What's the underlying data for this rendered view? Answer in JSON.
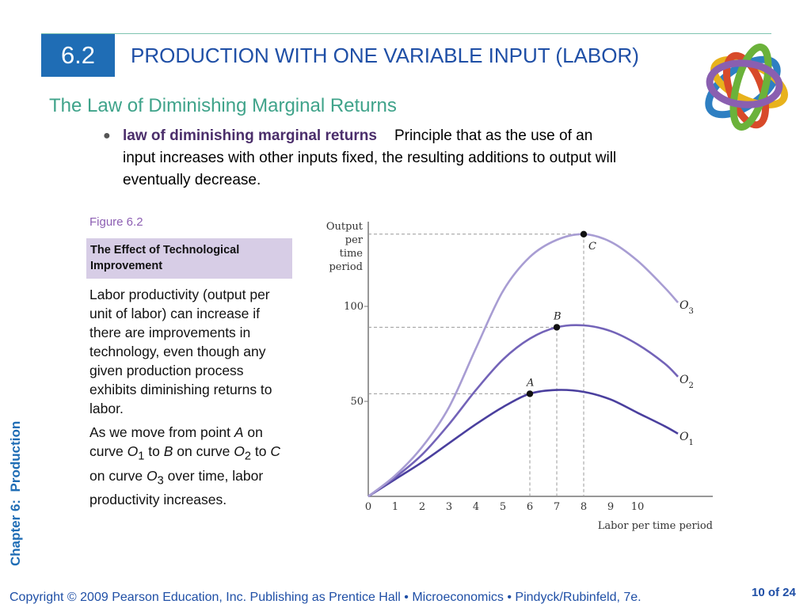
{
  "header": {
    "section_number": "6.2",
    "title": "PRODUCTION WITH ONE VARIABLE INPUT (LABOR)"
  },
  "subtitle": "The Law of Diminishing Marginal Returns",
  "bullet": {
    "term": "law of diminishing marginal returns",
    "definition": "Principle that as the use of an input increases with other inputs fixed, the resulting additions to output will eventually decrease."
  },
  "figure": {
    "label": "Figure 6.2",
    "title": "The Effect of Technological Improvement",
    "caption1": "Labor productivity (output per unit of labor) can increase if there are improvements in technology, even though any given production process exhibits diminishing returns to labor.",
    "caption2": {
      "t1": "As we move from point ",
      "pA": "A",
      "t2": " on curve ",
      "o1": "O",
      "s1": "1",
      "t3": " to ",
      "pB": "B",
      "t4": " on curve ",
      "o2": "O",
      "s2": "2",
      "t5": " to ",
      "pC": "C",
      "t6": " on curve ",
      "o3": "O",
      "s3": "3",
      "t7": " over time, labor productivity increases."
    }
  },
  "chart_data": {
    "type": "line",
    "ylabel": [
      "Output",
      "per",
      "time",
      "period"
    ],
    "xlabel": "Labor per time period",
    "xlim": [
      0,
      13
    ],
    "ylim": [
      0,
      150
    ],
    "x_ticks": [
      0,
      1,
      2,
      3,
      4,
      5,
      6,
      7,
      8,
      9,
      10
    ],
    "y_ticks": [
      50,
      100
    ],
    "series": [
      {
        "name": "O",
        "sub": "1",
        "color": "#4a3f9e",
        "points": [
          [
            0,
            0
          ],
          [
            1,
            9
          ],
          [
            2,
            18
          ],
          [
            3,
            28
          ],
          [
            4,
            38
          ],
          [
            5,
            47
          ],
          [
            6,
            54
          ],
          [
            7,
            56
          ],
          [
            8,
            55
          ],
          [
            9,
            51
          ],
          [
            10,
            44
          ],
          [
            11,
            37
          ],
          [
            11.5,
            33
          ]
        ]
      },
      {
        "name": "O",
        "sub": "2",
        "color": "#7363b8",
        "points": [
          [
            0,
            0
          ],
          [
            1,
            10
          ],
          [
            2,
            22
          ],
          [
            3,
            38
          ],
          [
            4,
            56
          ],
          [
            5,
            72
          ],
          [
            6,
            83
          ],
          [
            7,
            89
          ],
          [
            8,
            90
          ],
          [
            9,
            87
          ],
          [
            10,
            80
          ],
          [
            11,
            70
          ],
          [
            11.5,
            63
          ]
        ]
      },
      {
        "name": "O",
        "sub": "3",
        "color": "#a89dd3",
        "points": [
          [
            0,
            0
          ],
          [
            1,
            11
          ],
          [
            2,
            26
          ],
          [
            3,
            47
          ],
          [
            4,
            78
          ],
          [
            5,
            108
          ],
          [
            6,
            126
          ],
          [
            7,
            135
          ],
          [
            8,
            138
          ],
          [
            9,
            134
          ],
          [
            10,
            124
          ],
          [
            11,
            110
          ],
          [
            11.5,
            102
          ]
        ]
      }
    ],
    "points": [
      {
        "label": "A",
        "x": 6,
        "y": 54
      },
      {
        "label": "B",
        "x": 7,
        "y": 89
      },
      {
        "label": "C",
        "x": 8,
        "y": 138
      }
    ]
  },
  "side_label": "Chapter 6:  Production",
  "footer": {
    "copyright": "Copyright © 2009 Pearson Education, Inc. Publishing as Prentice Hall  •  Microeconomics  •  Pindyck/Rubinfeld, 7e.",
    "page": "10 of 24"
  }
}
